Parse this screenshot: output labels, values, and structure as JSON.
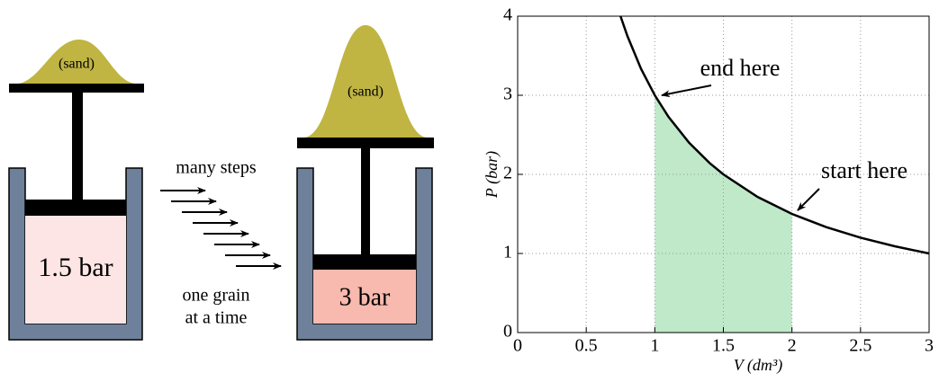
{
  "diagram": {
    "left": {
      "sand": "(sand)",
      "pressure": "1.5 bar"
    },
    "middle": {
      "top": "many steps",
      "bottom_1": "one grain",
      "bottom_2": "at a time"
    },
    "right": {
      "sand": "(sand)",
      "pressure": "3 bar"
    }
  },
  "chart_data": {
    "type": "line",
    "x": [
      0.75,
      0.8,
      0.9,
      1,
      1.1,
      1.25,
      1.4,
      1.5,
      1.75,
      2,
      2.25,
      2.5,
      2.75,
      3
    ],
    "values": [
      4,
      3.75,
      3.333,
      3,
      2.727,
      2.4,
      2.143,
      2,
      1.714,
      1.5,
      1.333,
      1.2,
      1.091,
      1
    ],
    "color": "#000000",
    "shade": {
      "x": [
        1,
        1.1,
        1.25,
        1.4,
        1.5,
        1.75,
        2
      ],
      "values": [
        3,
        2.727,
        2.4,
        2.143,
        2,
        1.714,
        1.5
      ],
      "color": "#bfe9c9"
    },
    "xlabel": "V (dm³)",
    "ylabel": "P (bar)",
    "annotations": [
      "end here",
      "start here"
    ],
    "xlim": [
      0,
      3
    ],
    "ylim": [
      0,
      4
    ],
    "xticks": [
      0,
      0.5,
      1,
      1.5,
      2,
      2.5,
      3
    ],
    "yticks": [
      0,
      1,
      2,
      3,
      4
    ],
    "grid": true
  }
}
